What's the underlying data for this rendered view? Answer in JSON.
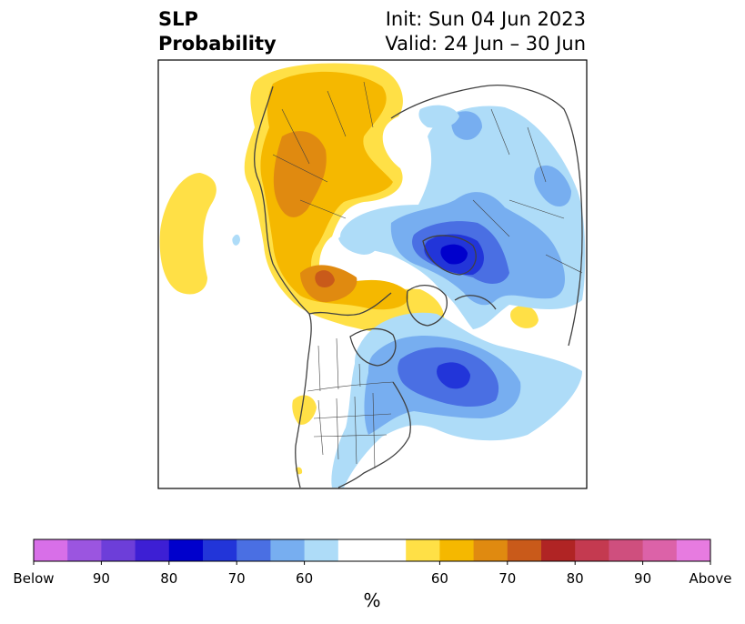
{
  "header": {
    "title_line1": "SLP",
    "title_line2": "Probability",
    "init": "Init: Sun 04 Jun 2023",
    "valid": "Valid: 24 Jun – 30 Jun"
  },
  "colorbar": {
    "units": "%",
    "colors": [
      "#d86fe8",
      "#9b55e0",
      "#6d3ed9",
      "#3d1fd4",
      "#0000cc",
      "#2235d9",
      "#4a6fe3",
      "#77aef0",
      "#aedcf8",
      "#ffffff",
      "#ffffff",
      "#ffe046",
      "#f5b800",
      "#e08a10",
      "#c95a1a",
      "#b02424",
      "#c43a50",
      "#cf4f7e",
      "#dc62a8",
      "#e77be0"
    ],
    "ticks": [
      {
        "label": "Below"
      },
      {
        "label": "90"
      },
      {
        "label": "80"
      },
      {
        "label": "70"
      },
      {
        "label": "60"
      },
      {
        "label": "60"
      },
      {
        "label": "70"
      },
      {
        "label": "80"
      },
      {
        "label": "90"
      },
      {
        "label": "Above"
      }
    ]
  },
  "legend_colors": {
    "below_light": "#aedcf8",
    "below_mid": "#77aef0",
    "below_strong": "#4a6fe3",
    "below_deep": "#2235d9",
    "below_deepest": "#0000cc",
    "above_light": "#ffe046",
    "above_mid": "#f5b800",
    "above_strong": "#e08a10",
    "above_deep": "#c95a1a"
  }
}
